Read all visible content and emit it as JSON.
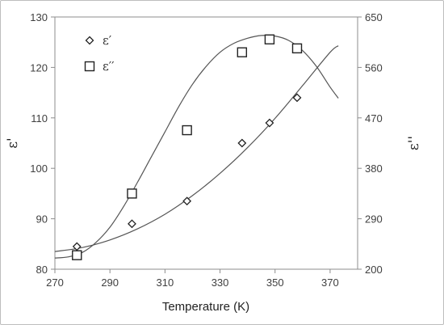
{
  "chart_data": {
    "type": "scatter",
    "xlabel": "Temperature (K)",
    "ylabel_left": "ε'",
    "ylabel_right": "ε''",
    "xlim": [
      270,
      380
    ],
    "ylim_left": [
      80,
      130
    ],
    "ylim_right": [
      200,
      650
    ],
    "x_ticks": [
      270,
      290,
      310,
      330,
      350,
      370
    ],
    "y_left_ticks": [
      80,
      90,
      100,
      110,
      120,
      130
    ],
    "y_right_ticks": [
      200,
      290,
      380,
      470,
      560,
      650
    ],
    "grid": false,
    "legend_position": "top-left",
    "series": [
      {
        "name": "ε′",
        "axis": "left",
        "marker": "diamond",
        "x": [
          278,
          298,
          318,
          338,
          348,
          358
        ],
        "y": [
          84.5,
          89,
          93.5,
          105,
          109,
          114
        ]
      },
      {
        "name": "ε′′",
        "axis": "right",
        "marker": "square",
        "x": [
          278,
          298,
          318,
          338,
          348,
          358
        ],
        "y": [
          225,
          335,
          448,
          587,
          610,
          594
        ]
      }
    ],
    "fit_curves": [
      {
        "series": "ε′",
        "axis": "left",
        "x": [
          270,
          280,
          290,
          300,
          310,
          320,
          330,
          340,
          350,
          360,
          370,
          373
        ],
        "y": [
          83.5,
          84.3,
          85.8,
          88.0,
          90.9,
          94.6,
          99.0,
          104.1,
          109.9,
          116.4,
          123.0,
          124.3
        ]
      },
      {
        "series": "ε′′",
        "axis": "right",
        "x": [
          270,
          275,
          280,
          285,
          290,
          295,
          300,
          305,
          310,
          315,
          320,
          325,
          330,
          335,
          340,
          345,
          350,
          355,
          360,
          365,
          370,
          373
        ],
        "y": [
          220,
          222,
          230,
          248,
          275,
          312,
          355,
          400,
          445,
          490,
          530,
          562,
          587,
          603,
          612,
          617,
          616,
          608,
          590,
          562,
          525,
          505
        ]
      }
    ]
  }
}
